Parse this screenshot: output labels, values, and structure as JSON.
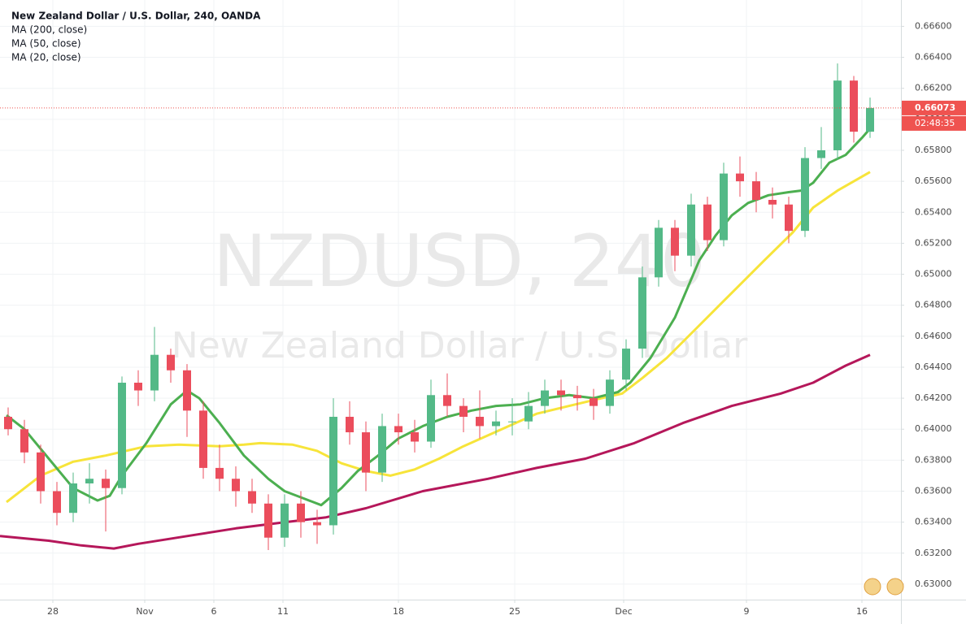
{
  "chart_data": {
    "type": "candlestick",
    "title": "New Zealand Dollar / U.S. Dollar, 240, OANDA",
    "watermark": "NZDUSD, 240",
    "watermark_subtitle": "New Zealand Dollar / U.S. Dollar",
    "up_color": "#53b987",
    "down_color": "#eb4d5c",
    "open": [
      0.6408,
      0.64,
      0.6385,
      0.636,
      0.6346,
      0.6365,
      0.6368,
      0.6362,
      0.643,
      0.6425,
      0.6448,
      0.6438,
      0.6412,
      0.6375,
      0.6368,
      0.636,
      0.6352,
      0.633,
      0.6352,
      0.634,
      0.6338,
      0.6408,
      0.6398,
      0.6372,
      0.6402,
      0.6398,
      0.6392,
      0.6422,
      0.6415,
      0.6408,
      0.6402,
      0.6405,
      0.6405,
      0.6415,
      0.6425,
      0.6422,
      0.642,
      0.6415,
      0.6432,
      0.6452,
      0.6498,
      0.653,
      0.6512,
      0.6545,
      0.6522,
      0.6565,
      0.656,
      0.6548,
      0.6545,
      0.6528,
      0.6575,
      0.658,
      0.6625,
      0.6592
    ],
    "high": [
      0.6414,
      0.6406,
      0.639,
      0.6366,
      0.6372,
      0.6378,
      0.6374,
      0.6434,
      0.6438,
      0.6466,
      0.6452,
      0.6442,
      0.6418,
      0.639,
      0.6376,
      0.6368,
      0.6358,
      0.6358,
      0.636,
      0.6348,
      0.642,
      0.6418,
      0.6405,
      0.641,
      0.641,
      0.6406,
      0.6432,
      0.6436,
      0.642,
      0.6425,
      0.6412,
      0.642,
      0.6424,
      0.6432,
      0.6432,
      0.6428,
      0.6426,
      0.6438,
      0.6458,
      0.6505,
      0.6535,
      0.6535,
      0.6552,
      0.655,
      0.6572,
      0.6576,
      0.6566,
      0.6556,
      0.655,
      0.6582,
      0.6595,
      0.6636,
      0.6628,
      0.6614
    ],
    "low": [
      0.6396,
      0.6378,
      0.6352,
      0.6338,
      0.634,
      0.6352,
      0.6334,
      0.6358,
      0.6415,
      0.6418,
      0.643,
      0.6395,
      0.6368,
      0.636,
      0.635,
      0.6346,
      0.6322,
      0.6324,
      0.633,
      0.6326,
      0.6332,
      0.639,
      0.636,
      0.6366,
      0.639,
      0.6385,
      0.6388,
      0.6408,
      0.6398,
      0.6394,
      0.6396,
      0.6396,
      0.64,
      0.641,
      0.6412,
      0.6412,
      0.6406,
      0.641,
      0.6425,
      0.6446,
      0.6492,
      0.6502,
      0.6505,
      0.6515,
      0.6518,
      0.655,
      0.654,
      0.6536,
      0.652,
      0.6524,
      0.6568,
      0.6574,
      0.6585,
      0.6588
    ],
    "close": [
      0.64,
      0.6385,
      0.636,
      0.6346,
      0.6365,
      0.6368,
      0.6362,
      0.643,
      0.6425,
      0.6448,
      0.6438,
      0.6412,
      0.6375,
      0.6368,
      0.636,
      0.6352,
      0.633,
      0.6352,
      0.634,
      0.6338,
      0.6408,
      0.6398,
      0.6372,
      0.6402,
      0.6398,
      0.6392,
      0.6422,
      0.6415,
      0.6408,
      0.6402,
      0.6405,
      0.6405,
      0.6415,
      0.6425,
      0.6422,
      0.642,
      0.6415,
      0.6432,
      0.6452,
      0.6498,
      0.653,
      0.6512,
      0.6545,
      0.6522,
      0.6565,
      0.656,
      0.6548,
      0.6545,
      0.6528,
      0.6575,
      0.658,
      0.6625,
      0.6592,
      0.66073
    ],
    "series": [
      {
        "name": "MA (200, close)",
        "color": "#b5175a",
        "x": [
          -0.5,
          2.5,
          4.5,
          6.5,
          8,
          11,
          14,
          17,
          19.5,
          22,
          25.5,
          29.5,
          32.5,
          35.5,
          38.5,
          41.5,
          44.5,
          47.5,
          49.5,
          51.5,
          53
        ],
        "values": [
          0.6331,
          0.6328,
          0.6325,
          0.6323,
          0.6326,
          0.6331,
          0.6336,
          0.634,
          0.6343,
          0.6349,
          0.636,
          0.6368,
          0.6375,
          0.6381,
          0.6391,
          0.6404,
          0.6415,
          0.6423,
          0.643,
          0.6441,
          0.6448
        ]
      },
      {
        "name": "MA (50, close)",
        "color": "#f7e43a",
        "x": [
          -0.1,
          2,
          4,
          6,
          8.5,
          10.5,
          13,
          14.5,
          15.5,
          17.5,
          19,
          20.5,
          22,
          23.5,
          25,
          26.5,
          28,
          29.5,
          31,
          32.5,
          34.5,
          36.5,
          37.75,
          39,
          40.5,
          42.5,
          44.5,
          46.5,
          48.25,
          49.5,
          51,
          53
        ],
        "values": [
          0.6353,
          0.637,
          0.6379,
          0.6383,
          0.6389,
          0.639,
          0.6389,
          0.639,
          0.6391,
          0.639,
          0.6386,
          0.6378,
          0.6373,
          0.637,
          0.6374,
          0.6381,
          0.6389,
          0.6396,
          0.6403,
          0.641,
          0.6415,
          0.642,
          0.6423,
          0.6433,
          0.6446,
          0.6467,
          0.6488,
          0.6509,
          0.6527,
          0.6543,
          0.6554,
          0.6566
        ]
      },
      {
        "name": "MA (20, close)",
        "color": "#4caf50",
        "x": [
          -0.1,
          1,
          2.5,
          4,
          5.5,
          6.25,
          7,
          8.5,
          10,
          11,
          11.75,
          13,
          14.5,
          16,
          17,
          18,
          19.25,
          20.5,
          21.5,
          22.75,
          24,
          25.5,
          27,
          28.5,
          30,
          31.5,
          33,
          34.5,
          36,
          37.5,
          38.25,
          39.5,
          41,
          42.5,
          43.5,
          44.5,
          45.5,
          46.75,
          48,
          48.75,
          49.5,
          50.5,
          51.5,
          52.5,
          53
        ],
        "values": [
          0.6409,
          0.64,
          0.6381,
          0.6362,
          0.6354,
          0.6357,
          0.637,
          0.6391,
          0.6416,
          0.6425,
          0.642,
          0.6404,
          0.6383,
          0.6368,
          0.636,
          0.6356,
          0.6351,
          0.6362,
          0.6373,
          0.6383,
          0.6394,
          0.6402,
          0.6408,
          0.6412,
          0.6415,
          0.6416,
          0.642,
          0.6422,
          0.642,
          0.6424,
          0.643,
          0.6446,
          0.6472,
          0.6509,
          0.6525,
          0.6538,
          0.6546,
          0.6551,
          0.6553,
          0.6554,
          0.6559,
          0.6572,
          0.6577,
          0.6588,
          0.6594
        ]
      }
    ],
    "last_price": 0.66073,
    "last_price_color": "#ef5350",
    "countdown": "02:48:35",
    "xlim": [
      -0.5,
      54.9
    ],
    "xticks": [
      {
        "value": 2.75,
        "label": "28"
      },
      {
        "value": 8.4,
        "label": "Nov"
      },
      {
        "value": 12.65,
        "label": "6"
      },
      {
        "value": 16.9,
        "label": "11"
      },
      {
        "value": 24,
        "label": "18"
      },
      {
        "value": 31.15,
        "label": "25"
      },
      {
        "value": 37.85,
        "label": "Dec"
      },
      {
        "value": 45.4,
        "label": "9"
      },
      {
        "value": 52.5,
        "label": "16"
      }
    ],
    "ylim": [
      0.629,
      0.6677
    ],
    "yticks": [
      {
        "value": 0.63,
        "label": "0.63000"
      },
      {
        "value": 0.632,
        "label": "0.63200"
      },
      {
        "value": 0.634,
        "label": "0.63400"
      },
      {
        "value": 0.636,
        "label": "0.63600"
      },
      {
        "value": 0.638,
        "label": "0.63800"
      },
      {
        "value": 0.64,
        "label": "0.64000"
      },
      {
        "value": 0.642,
        "label": "0.64200"
      },
      {
        "value": 0.644,
        "label": "0.64400"
      },
      {
        "value": 0.646,
        "label": "0.64600"
      },
      {
        "value": 0.648,
        "label": "0.64800"
      },
      {
        "value": 0.65,
        "label": "0.65000"
      },
      {
        "value": 0.652,
        "label": "0.65200"
      },
      {
        "value": 0.654,
        "label": "0.65400"
      },
      {
        "value": 0.656,
        "label": "0.65600"
      },
      {
        "value": 0.658,
        "label": "0.65800"
      },
      {
        "value": 0.66,
        "label": "0.66000"
      },
      {
        "value": 0.662,
        "label": "0.66200"
      },
      {
        "value": 0.664,
        "label": "0.66400"
      },
      {
        "value": 0.666,
        "label": "0.66600"
      }
    ],
    "grid": true
  }
}
